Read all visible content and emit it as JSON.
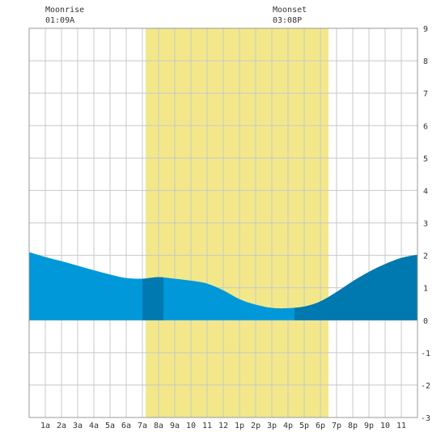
{
  "chart_data": {
    "type": "area",
    "title": "",
    "xlabel": "",
    "ylabel": "",
    "x_tick_labels": [
      "1a",
      "2a",
      "3a",
      "4a",
      "5a",
      "6a",
      "7a",
      "8a",
      "9a",
      "10",
      "11",
      "12",
      "1p",
      "2p",
      "3p",
      "4p",
      "5p",
      "6p",
      "7p",
      "8p",
      "9p",
      "10",
      "11"
    ],
    "xlim_hours": [
      0,
      24
    ],
    "ylim": [
      -3,
      9
    ],
    "y_ticks": [
      -3,
      -2,
      -1,
      0,
      1,
      2,
      3,
      4,
      5,
      6,
      7,
      8,
      9
    ],
    "grid": true,
    "daylight_band_hours": [
      7.2,
      18.5
    ],
    "series": [
      {
        "values_x_hours": [
          0,
          1,
          2,
          3,
          4,
          5,
          6,
          7,
          8,
          9,
          10,
          11,
          12,
          13,
          14,
          15,
          16,
          17,
          18,
          19,
          20,
          21,
          22,
          23,
          24
        ],
        "values_y": [
          2.1,
          1.95,
          1.82,
          1.68,
          1.54,
          1.41,
          1.3,
          1.28,
          1.33,
          1.28,
          1.22,
          1.13,
          0.92,
          0.65,
          0.48,
          0.38,
          0.37,
          0.42,
          0.58,
          0.87,
          1.2,
          1.49,
          1.73,
          1.92,
          2.02
        ]
      }
    ],
    "highlight_bands_hours": [
      [
        7.0,
        8.3
      ],
      [
        16.4,
        24
      ]
    ],
    "annotations": [
      {
        "label": "Moonrise",
        "time": "01:09A"
      },
      {
        "label": "Moonset",
        "time": "03:08P"
      }
    ],
    "colors": {
      "background": "#ffffff",
      "grid": "#c8c8c8",
      "daylight": "#f2e88a",
      "area": "#0098d8",
      "area_dark": "#0078b0",
      "axis_text": "#333333"
    }
  }
}
